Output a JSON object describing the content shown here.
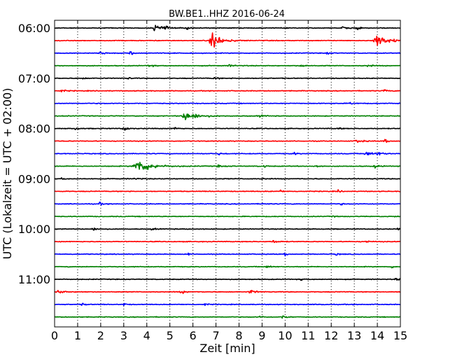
{
  "chart_data": {
    "type": "line",
    "title": "BW.BE1..HHZ 2016-06-24",
    "xlabel": "Zeit  [min]",
    "ylabel": "UTC (Lokalzeit = UTC + 02:00)",
    "xlim": [
      0,
      15
    ],
    "x_ticks": [
      0,
      1,
      2,
      3,
      4,
      5,
      6,
      7,
      8,
      9,
      10,
      11,
      12,
      13,
      14,
      15
    ],
    "x_tick_labels": [
      "0",
      "1",
      "2",
      "3",
      "4",
      "5",
      "6",
      "7",
      "8",
      "9",
      "10",
      "11",
      "12",
      "13",
      "14",
      "15"
    ],
    "y_tick_labels": [
      "06:00",
      "07:00",
      "08:00",
      "09:00",
      "10:00",
      "11:00"
    ],
    "y_tick_rows": [
      0,
      4,
      8,
      12,
      16,
      20
    ],
    "grid_x": true,
    "color_cycle": [
      "#000000",
      "#ff0000",
      "#0000ff",
      "#008000"
    ],
    "traces": [
      {
        "start": "06:00",
        "events": [
          [
            4.35,
            1.0,
            0.2
          ],
          [
            4.7,
            0.8,
            0.2
          ],
          [
            5.75,
            0.5,
            0.2
          ],
          [
            12.5,
            0.4,
            0.2
          ],
          [
            13.1,
            0.6,
            0.1
          ],
          [
            15.0,
            0.6,
            0.1
          ]
        ]
      },
      {
        "start": "06:15",
        "events": [
          [
            6.85,
            2.6,
            0.35
          ],
          [
            14.0,
            2.0,
            0.4
          ]
        ]
      },
      {
        "start": "06:30",
        "events": [
          [
            2.0,
            0.6,
            0.15
          ],
          [
            3.3,
            0.5,
            0.25
          ],
          [
            11.8,
            0.3,
            0.15
          ]
        ]
      },
      {
        "start": "06:45",
        "events": [
          [
            4.1,
            0.4,
            0.15
          ],
          [
            7.6,
            0.3,
            0.2
          ],
          [
            10.7,
            0.3,
            0.2
          ],
          [
            13.6,
            0.3,
            0.15
          ]
        ]
      },
      {
        "start": "07:00",
        "events": [
          [
            1.25,
            0.3,
            0.1
          ],
          [
            3.2,
            0.4,
            0.1
          ],
          [
            6.9,
            0.3,
            0.2
          ]
        ]
      },
      {
        "start": "07:15",
        "events": [
          [
            0.3,
            0.3,
            0.2
          ],
          [
            14.3,
            0.3,
            0.2
          ]
        ]
      },
      {
        "start": "07:30",
        "events": [
          [
            12.8,
            0.5,
            0.1
          ],
          [
            14.9,
            0.4,
            0.1
          ]
        ]
      },
      {
        "start": "07:45",
        "events": [
          [
            5.7,
            1.4,
            0.45
          ],
          [
            8.9,
            0.3,
            0.2
          ]
        ]
      },
      {
        "start": "08:00",
        "events": [
          [
            0.9,
            0.5,
            0.1
          ],
          [
            3.0,
            0.8,
            0.15
          ],
          [
            5.2,
            0.6,
            0.1
          ],
          [
            12.3,
            0.4,
            0.1
          ]
        ]
      },
      {
        "start": "08:15",
        "events": [
          [
            13.1,
            0.6,
            0.2
          ],
          [
            14.3,
            0.5,
            0.15
          ]
        ]
      },
      {
        "start": "08:30",
        "events": [
          [
            7.1,
            0.5,
            0.1
          ],
          [
            10.4,
            0.4,
            0.1
          ],
          [
            13.5,
            0.8,
            0.2
          ],
          [
            14.0,
            0.6,
            0.2
          ]
        ]
      },
      {
        "start": "08:45",
        "events": [
          [
            3.6,
            2.2,
            0.5
          ],
          [
            7.1,
            0.3,
            0.2
          ],
          [
            9.1,
            0.4,
            0.1
          ],
          [
            11.3,
            0.5,
            0.15
          ],
          [
            13.9,
            0.5,
            0.15
          ]
        ]
      },
      {
        "start": "09:00",
        "events": [
          [
            0.3,
            0.3,
            0.1
          ],
          [
            3.5,
            0.3,
            0.15
          ],
          [
            9.0,
            0.3,
            0.1
          ]
        ]
      },
      {
        "start": "09:15",
        "events": [
          [
            9.8,
            0.4,
            0.1
          ],
          [
            12.3,
            0.4,
            0.1
          ]
        ]
      },
      {
        "start": "09:30",
        "events": [
          [
            1.95,
            0.5,
            0.1
          ],
          [
            9.0,
            0.3,
            0.1
          ],
          [
            12.4,
            0.3,
            0.1
          ]
        ]
      },
      {
        "start": "09:45",
        "events": [
          [
            12.0,
            0.3,
            0.1
          ],
          [
            14.7,
            0.3,
            0.1
          ]
        ]
      },
      {
        "start": "10:00",
        "events": [
          [
            1.65,
            0.6,
            0.1
          ],
          [
            4.2,
            0.3,
            0.15
          ],
          [
            14.9,
            0.3,
            0.1
          ]
        ]
      },
      {
        "start": "10:15",
        "events": [
          [
            9.5,
            0.4,
            0.2
          ],
          [
            13.5,
            0.5,
            0.1
          ]
        ]
      },
      {
        "start": "10:30",
        "events": [
          [
            5.8,
            0.4,
            0.1
          ],
          [
            10.0,
            0.4,
            0.1
          ],
          [
            12.2,
            0.4,
            0.1
          ]
        ]
      },
      {
        "start": "10:45",
        "events": [
          [
            9.2,
            0.3,
            0.2
          ],
          [
            14.6,
            0.4,
            0.1
          ]
        ]
      },
      {
        "start": "11:00",
        "events": [
          [
            10.7,
            0.4,
            0.1
          ],
          [
            14.8,
            0.5,
            0.1
          ]
        ]
      },
      {
        "start": "11:15",
        "events": [
          [
            0.1,
            0.5,
            0.3
          ],
          [
            5.5,
            0.4,
            0.2
          ],
          [
            8.5,
            0.6,
            0.2
          ]
        ]
      },
      {
        "start": "11:30",
        "events": [
          [
            1.2,
            0.4,
            0.1
          ],
          [
            3.0,
            0.4,
            0.1
          ],
          [
            6.5,
            0.4,
            0.1
          ],
          [
            11.6,
            0.3,
            0.1
          ]
        ]
      },
      {
        "start": "11:45",
        "events": [
          [
            8.9,
            0.5,
            0.1
          ],
          [
            9.9,
            0.6,
            0.15
          ]
        ]
      }
    ]
  }
}
